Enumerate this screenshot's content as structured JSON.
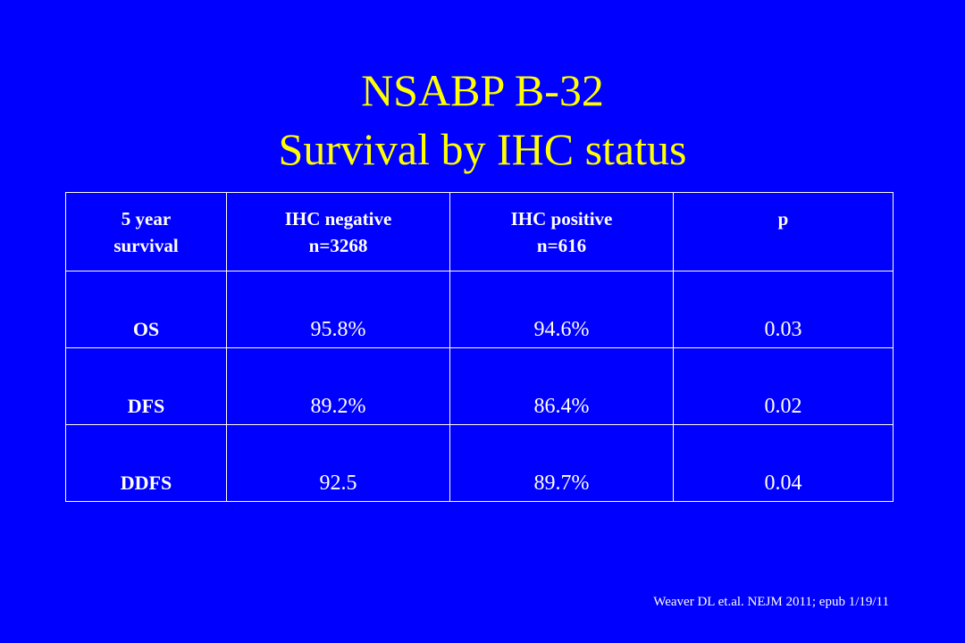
{
  "slide": {
    "title_line1": "NSABP B-32",
    "title_line2": "Survival by IHC status",
    "citation": "Weaver DL et.al. NEJM 2011; epub 1/19/11"
  },
  "colors": {
    "background": "#0000ff",
    "title": "#ffff00",
    "text": "#ffffff"
  },
  "table": {
    "headers": [
      {
        "line1": "5 year",
        "line2": "survival"
      },
      {
        "line1": "IHC negative",
        "line2": "n=3268"
      },
      {
        "line1": "IHC positive",
        "line2": "n=616"
      },
      {
        "line1": "p",
        "line2": ""
      }
    ],
    "rows": [
      {
        "label": "OS",
        "ihc_negative": "95.8%",
        "ihc_positive": "94.6%",
        "p": "0.03"
      },
      {
        "label": "DFS",
        "ihc_negative": "89.2%",
        "ihc_positive": "86.4%",
        "p": "0.02"
      },
      {
        "label": "DDFS",
        "ihc_negative": "92.5",
        "ihc_positive": "89.7%",
        "p": "0.04"
      }
    ]
  }
}
